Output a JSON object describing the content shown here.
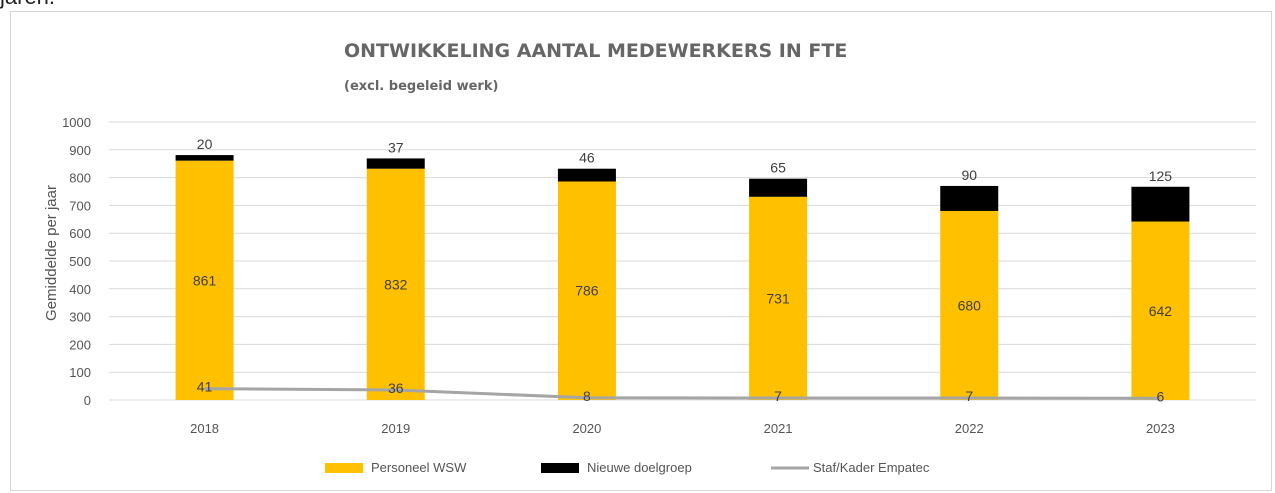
{
  "page": {
    "top_clipped_text": "jaren."
  },
  "chart_data": {
    "type": "bar",
    "stacked": true,
    "title": "ONTWIKKELING AANTAL MEDEWERKERS IN FTE",
    "subtitle": "(excl. begeleid werk)",
    "ylabel": "Gemiddelde per jaar",
    "xlabel": "",
    "ylim": [
      0,
      1000
    ],
    "yticks": [
      "0",
      "100",
      "200",
      "300",
      "400",
      "500",
      "600",
      "700",
      "800",
      "900",
      "1000"
    ],
    "categories": [
      "2018",
      "2019",
      "2020",
      "2021",
      "2022",
      "2023"
    ],
    "series": [
      {
        "name": "Personeel WSW",
        "kind": "bar",
        "color": "#FFC000",
        "values": [
          861,
          832,
          786,
          731,
          680,
          642
        ]
      },
      {
        "name": "Nieuwe doelgroep",
        "kind": "bar",
        "color": "#000000",
        "values": [
          20,
          37,
          46,
          65,
          90,
          125
        ]
      },
      {
        "name": "Staf/Kader Empatec",
        "kind": "line",
        "color": "#A5A5A5",
        "values": [
          41,
          36,
          8,
          7,
          7,
          6
        ]
      }
    ],
    "grid": true,
    "legend_position": "bottom"
  }
}
